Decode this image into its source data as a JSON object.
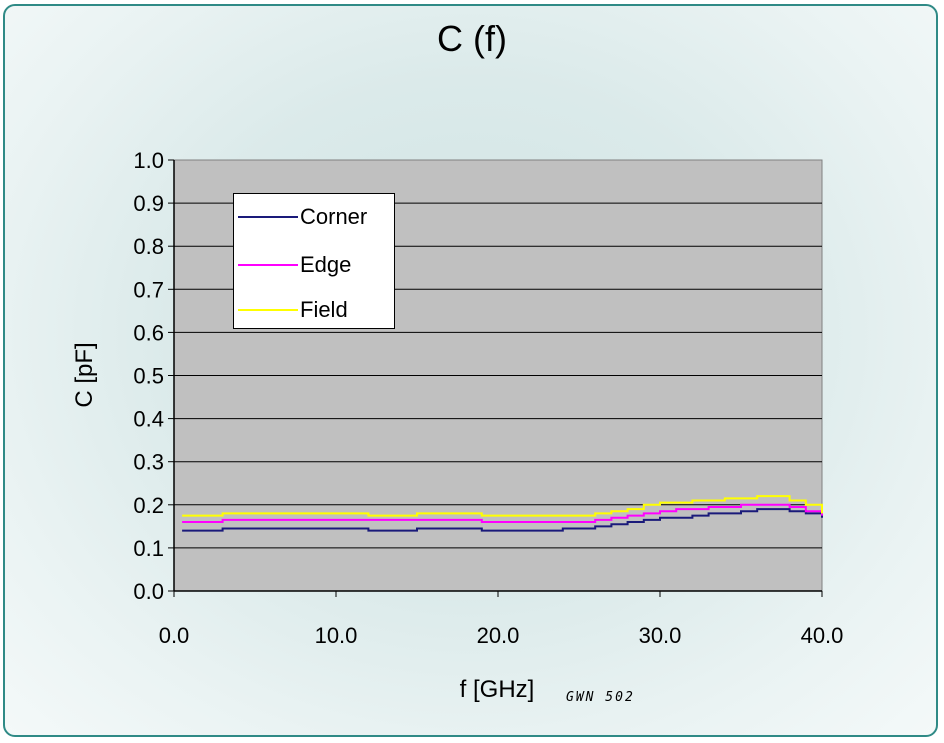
{
  "colors": {
    "background_frame": "#2f8a86",
    "plot_area": "#c0c0c0",
    "corner": "#1a1a7a",
    "edge": "#ff00ff",
    "field": "#ffff00"
  },
  "watermark": "GWN 502",
  "chart_data": {
    "type": "line",
    "title": "C (f)",
    "xlabel": "f [GHz]",
    "ylabel": "C [pF]",
    "xlim": [
      0.0,
      40.0
    ],
    "ylim": [
      0.0,
      1.0
    ],
    "x_ticks": [
      "0.0",
      "10.0",
      "20.0",
      "30.0",
      "40.0"
    ],
    "y_ticks": [
      "0.0",
      "0.1",
      "0.2",
      "0.3",
      "0.4",
      "0.5",
      "0.6",
      "0.7",
      "0.8",
      "0.9",
      "1.0"
    ],
    "grid": "horizontal",
    "legend_position": "top-left",
    "x": [
      0.5,
      3,
      6,
      9,
      12,
      15,
      18,
      19,
      21,
      24,
      26,
      27,
      28,
      29,
      30,
      31,
      32,
      33,
      34,
      35,
      36,
      37,
      38,
      39,
      40
    ],
    "series": [
      {
        "name": "Corner",
        "color": "#1a1a7a",
        "values": [
          0.14,
          0.145,
          0.145,
          0.145,
          0.14,
          0.145,
          0.145,
          0.14,
          0.14,
          0.145,
          0.15,
          0.155,
          0.16,
          0.165,
          0.17,
          0.17,
          0.175,
          0.18,
          0.18,
          0.185,
          0.19,
          0.19,
          0.185,
          0.18,
          0.17
        ]
      },
      {
        "name": "Edge",
        "color": "#ff00ff",
        "values": [
          0.16,
          0.165,
          0.165,
          0.165,
          0.165,
          0.165,
          0.165,
          0.16,
          0.16,
          0.16,
          0.165,
          0.17,
          0.175,
          0.18,
          0.185,
          0.19,
          0.19,
          0.195,
          0.195,
          0.2,
          0.2,
          0.2,
          0.195,
          0.185,
          0.175
        ]
      },
      {
        "name": "Field",
        "color": "#ffff00",
        "values": [
          0.175,
          0.18,
          0.18,
          0.18,
          0.175,
          0.18,
          0.18,
          0.175,
          0.175,
          0.175,
          0.18,
          0.185,
          0.19,
          0.2,
          0.205,
          0.205,
          0.21,
          0.21,
          0.215,
          0.215,
          0.22,
          0.22,
          0.21,
          0.2,
          0.18
        ]
      }
    ]
  }
}
